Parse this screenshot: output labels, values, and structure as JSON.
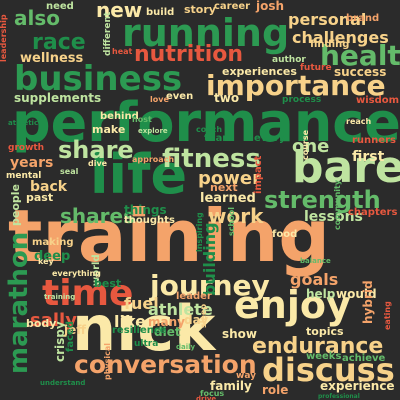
{
  "word_cloud": {
    "words": [
      {
        "text": "training",
        "color": "#f4a36a"
      },
      {
        "text": "performance",
        "color": "#1f8e4a"
      },
      {
        "text": "nick",
        "color": "#fbe9a8"
      },
      {
        "text": "running",
        "color": "#2c9a52"
      },
      {
        "text": "business",
        "color": "#2c9a52"
      },
      {
        "text": "life",
        "color": "#1f8e4a"
      },
      {
        "text": "bare",
        "color": "#bfe4a0"
      },
      {
        "text": "enjoy",
        "color": "#fbe9a8"
      },
      {
        "text": "importance",
        "color": "#f7d28a"
      },
      {
        "text": "time",
        "color": "#e7583f"
      },
      {
        "text": "discuss",
        "color": "#f7d28a"
      },
      {
        "text": "conversation",
        "color": "#f4a36a"
      },
      {
        "text": "journey",
        "color": "#fbe9a8"
      },
      {
        "text": "marathon",
        "color": "#2c9a52"
      },
      {
        "text": "endurance",
        "color": "#f7d28a"
      },
      {
        "text": "health",
        "color": "#64bb6a"
      },
      {
        "text": "fitness",
        "color": "#bfe4a0"
      },
      {
        "text": "share",
        "color": "#bfe4a0"
      },
      {
        "text": "strength",
        "color": "#64bb6a"
      },
      {
        "text": "nutrition",
        "color": "#e7583f"
      },
      {
        "text": "work",
        "color": "#f7d28a"
      },
      {
        "text": "shares",
        "color": "#64bb6a"
      },
      {
        "text": "race",
        "color": "#1f8e4a"
      },
      {
        "text": "new",
        "color": "#fbe9a8"
      },
      {
        "text": "also",
        "color": "#64bb6a"
      },
      {
        "text": "one",
        "color": "#bfe4a0"
      },
      {
        "text": "power",
        "color": "#f7d28a"
      },
      {
        "text": "sally",
        "color": "#e7583f"
      },
      {
        "text": "fuel",
        "color": "#f7d28a"
      },
      {
        "text": "athlete",
        "color": "#bfe4a0"
      },
      {
        "text": "like",
        "color": "#fbe9a8"
      },
      {
        "text": "personal",
        "color": "#f7d28a"
      },
      {
        "text": "challenges",
        "color": "#f7d28a"
      },
      {
        "text": "building",
        "color": "#1f8e4a"
      },
      {
        "text": "lessons",
        "color": "#bfe4a0"
      },
      {
        "text": "goals",
        "color": "#f4a36a"
      },
      {
        "text": "success",
        "color": "#f7d28a"
      },
      {
        "text": "supplements",
        "color": "#bfe4a0"
      },
      {
        "text": "experience",
        "color": "#fbe9a8"
      },
      {
        "text": "experiences",
        "color": "#fbe9a8"
      },
      {
        "text": "learned",
        "color": "#fbe9a8"
      },
      {
        "text": "wellness",
        "color": "#f7d28a"
      },
      {
        "text": "first",
        "color": "#fbe9a8"
      },
      {
        "text": "years",
        "color": "#f4a36a"
      },
      {
        "text": "back",
        "color": "#f7d28a"
      },
      {
        "text": "family",
        "color": "#fbe9a8"
      },
      {
        "text": "show",
        "color": "#fbe9a8"
      },
      {
        "text": "role",
        "color": "#f4a36a"
      },
      {
        "text": "would",
        "color": "#fbe9a8"
      },
      {
        "text": "help",
        "color": "#bfe4a0"
      },
      {
        "text": "hybrid",
        "color": "#f4a36a"
      },
      {
        "text": "diet",
        "color": "#64bb6a"
      },
      {
        "text": "crispy",
        "color": "#bfe4a0"
      },
      {
        "text": "deep",
        "color": "#1f8e4a"
      },
      {
        "text": "jeff",
        "color": "#f7d28a"
      },
      {
        "text": "many",
        "color": "#f4a36a"
      },
      {
        "text": "things",
        "color": "#1f8e4a"
      },
      {
        "text": "day",
        "color": "#f7d28a"
      },
      {
        "text": "make",
        "color": "#fbe9a8"
      },
      {
        "text": "behind",
        "color": "#fbe9a8"
      },
      {
        "text": "brand",
        "color": "#f4a36a"
      },
      {
        "text": "story",
        "color": "#f7d28a"
      },
      {
        "text": "build",
        "color": "#fbe9a8"
      },
      {
        "text": "career",
        "color": "#f7d28a"
      },
      {
        "text": "josh",
        "color": "#f4a36a"
      },
      {
        "text": "finding",
        "color": "#f7d28a"
      },
      {
        "text": "author",
        "color": "#bfe4a0"
      },
      {
        "text": "future",
        "color": "#e7583f"
      },
      {
        "text": "wisdom",
        "color": "#e7583f"
      },
      {
        "text": "process",
        "color": "#1f8e4a"
      },
      {
        "text": "two",
        "color": "#fbe9a8"
      },
      {
        "text": "even",
        "color": "#fbe9a8"
      },
      {
        "text": "need",
        "color": "#bfe4a0"
      },
      {
        "text": "leader",
        "color": "#f4a36a"
      },
      {
        "text": "topics",
        "color": "#fbe9a8"
      },
      {
        "text": "weeks",
        "color": "#64bb6a"
      },
      {
        "text": "achieve",
        "color": "#64bb6a"
      },
      {
        "text": "leadership",
        "color": "#e7583f"
      },
      {
        "text": "people",
        "color": "#bfe4a0"
      },
      {
        "text": "past",
        "color": "#fbe9a8"
      },
      {
        "text": "thoughts",
        "color": "#fbe9a8"
      },
      {
        "text": "next",
        "color": "#f4a36a"
      },
      {
        "text": "world",
        "color": "#bfe4a0"
      },
      {
        "text": "body",
        "color": "#fbe9a8"
      },
      {
        "text": "best",
        "color": "#1f8e4a"
      },
      {
        "text": "making",
        "color": "#f7d28a"
      },
      {
        "text": "mental",
        "color": "#fbe9a8"
      },
      {
        "text": "growth",
        "color": "#e7583f"
      },
      {
        "text": "impact",
        "color": "#e7583f"
      },
      {
        "text": "course",
        "color": "#fbe9a8"
      },
      {
        "text": "runners",
        "color": "#e7583f"
      },
      {
        "text": "chapters",
        "color": "#e7583f"
      },
      {
        "text": "team",
        "color": "#1f8e4a"
      },
      {
        "text": "every",
        "color": "#1f8e4a"
      },
      {
        "text": "food",
        "color": "#fbe9a8"
      },
      {
        "text": "focus",
        "color": "#64bb6a"
      },
      {
        "text": "resilience",
        "color": "#1f8e4a"
      },
      {
        "text": "different",
        "color": "#bfe4a0"
      },
      {
        "text": "everything",
        "color": "#fbe9a8"
      },
      {
        "text": "ultra",
        "color": "#1f8e4a"
      },
      {
        "text": "approach",
        "color": "#f4a36a"
      },
      {
        "text": "dive",
        "color": "#fbe9a8"
      },
      {
        "text": "coach",
        "color": "#1f8e4a"
      },
      {
        "text": "love",
        "color": "#f4a36a"
      },
      {
        "text": "heat",
        "color": "#e7583f"
      },
      {
        "text": "host",
        "color": "#64bb6a"
      },
      {
        "text": "seal",
        "color": "#bfe4a0"
      },
      {
        "text": "way",
        "color": "#f4a36a"
      },
      {
        "text": "school",
        "color": "#64bb6a"
      },
      {
        "text": "community",
        "color": "#64bb6a"
      },
      {
        "text": "eating",
        "color": "#e7583f"
      },
      {
        "text": "faced",
        "color": "#1f8e4a"
      },
      {
        "text": "key",
        "color": "#fbe9a8"
      },
      {
        "text": "drive",
        "color": "#e7583f"
      },
      {
        "text": "reach",
        "color": "#fbe9a8"
      },
      {
        "text": "physical",
        "color": "#f4a36a"
      },
      {
        "text": "sleep",
        "color": "#f7d28a"
      },
      {
        "text": "understand",
        "color": "#1f8e4a"
      },
      {
        "text": "inspiring",
        "color": "#1f8e4a"
      },
      {
        "text": "athletic",
        "color": "#1f8e4a"
      },
      {
        "text": "balance",
        "color": "#64bb6a"
      },
      {
        "text": "professional",
        "color": "#1f8e4a"
      },
      {
        "text": "explore",
        "color": "#bfe4a0"
      },
      {
        "text": "daily",
        "color": "#64bb6a"
      },
      {
        "text": "training",
        "color": "#bfe4a0"
      }
    ]
  }
}
